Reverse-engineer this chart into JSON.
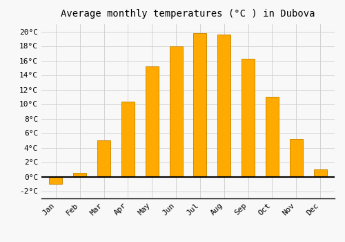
{
  "months": [
    "Jan",
    "Feb",
    "Mar",
    "Apr",
    "May",
    "Jun",
    "Jul",
    "Aug",
    "Sep",
    "Oct",
    "Nov",
    "Dec"
  ],
  "values": [
    -1.0,
    0.5,
    5.0,
    10.3,
    15.2,
    18.0,
    19.8,
    19.6,
    16.2,
    11.0,
    5.2,
    1.0
  ],
  "bar_color": "#FFAA00",
  "bar_edge_color": "#CC8800",
  "title": "Average monthly temperatures (°C ) in Dubova",
  "ylim": [
    -3,
    21
  ],
  "yticks": [
    -2,
    0,
    2,
    4,
    6,
    8,
    10,
    12,
    14,
    16,
    18,
    20
  ],
  "background_color": "#f8f8f8",
  "plot_bg_color": "#f0f0f0",
  "grid_color": "#cccccc",
  "title_fontsize": 10,
  "tick_fontsize": 8,
  "font_family": "monospace"
}
